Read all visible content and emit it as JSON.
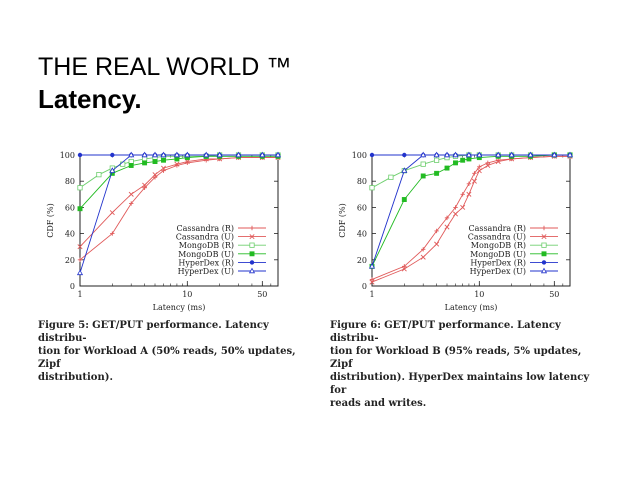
{
  "slide": {
    "title": "THE REAL WORLD ™",
    "subtitle": "Latency."
  },
  "chart_data": [
    {
      "type": "line",
      "title": "",
      "xlabel": "Latency (ms)",
      "ylabel": "CDF (%)",
      "xscale": "log",
      "xlim": [
        1,
        70
      ],
      "ylim": [
        0,
        100
      ],
      "xticks": [
        1,
        10,
        50
      ],
      "xtick_labels": [
        "1",
        "10",
        "50"
      ],
      "yticks": [
        0,
        20,
        40,
        60,
        80,
        100
      ],
      "ytick_labels": [
        "0",
        "20",
        "40",
        "60",
        "80",
        "100"
      ],
      "legend_position": "bottom-right",
      "series": [
        {
          "name": "Cassandra (R)",
          "color": "#e05a5a",
          "marker": "plus",
          "x": [
            1,
            2,
            3,
            4,
            5,
            6,
            8,
            10,
            15,
            20,
            30,
            50,
            70
          ],
          "y": [
            20,
            40,
            63,
            75,
            83,
            88,
            92,
            94,
            96,
            97,
            98,
            98,
            98
          ]
        },
        {
          "name": "Cassandra (U)",
          "color": "#e05a5a",
          "marker": "x",
          "x": [
            1,
            2,
            3,
            4,
            5,
            6,
            8,
            10,
            15,
            20,
            30,
            50,
            70
          ],
          "y": [
            30,
            56,
            70,
            77,
            85,
            90,
            93,
            95,
            97,
            97,
            98,
            98,
            98
          ]
        },
        {
          "name": "MongoDB (R)",
          "color": "#6fcf6f",
          "marker": "square-open",
          "x": [
            1,
            1.5,
            2,
            2.5,
            3,
            4,
            5,
            6,
            8,
            10,
            15,
            20,
            30,
            50,
            70
          ],
          "y": [
            75,
            85,
            90,
            93,
            95,
            97,
            98,
            99,
            99,
            99,
            99,
            100,
            100,
            100,
            100
          ]
        },
        {
          "name": "MongoDB (U)",
          "color": "#22bb22",
          "marker": "square",
          "x": [
            1,
            2,
            3,
            4,
            5,
            6,
            8,
            10,
            15,
            20,
            30,
            50,
            70
          ],
          "y": [
            59,
            86,
            92,
            94,
            95,
            96,
            97,
            98,
            99,
            99,
            99,
            99,
            99
          ]
        },
        {
          "name": "HyperDex (R)",
          "color": "#2233cc",
          "marker": "circle",
          "x": [
            1,
            2,
            3,
            4,
            5,
            6,
            8,
            10,
            15,
            20,
            30,
            50,
            70
          ],
          "y": [
            100,
            100,
            100,
            100,
            100,
            100,
            100,
            100,
            100,
            100,
            100,
            100,
            100
          ]
        },
        {
          "name": "HyperDex (U)",
          "color": "#2233cc",
          "marker": "triangle",
          "x": [
            1,
            2,
            3,
            4,
            5,
            6,
            8,
            10,
            15,
            20,
            30,
            50,
            70
          ],
          "y": [
            10,
            88,
            100,
            100,
            100,
            100,
            100,
            100,
            100,
            100,
            100,
            100,
            100
          ]
        }
      ],
      "caption": {
        "figure_label": "Figure 5:",
        "lines": [
          "GET/PUT performance. Latency distribu-",
          "tion for Workload A (50% reads, 50% updates, Zipf",
          "distribution)."
        ]
      }
    },
    {
      "type": "line",
      "title": "",
      "xlabel": "Latency (ms)",
      "ylabel": "CDF (%)",
      "xscale": "log",
      "xlim": [
        1,
        70
      ],
      "ylim": [
        0,
        100
      ],
      "xticks": [
        1,
        10,
        50
      ],
      "xtick_labels": [
        "1",
        "10",
        "50"
      ],
      "yticks": [
        0,
        20,
        40,
        60,
        80,
        100
      ],
      "ytick_labels": [
        "0",
        "20",
        "40",
        "60",
        "80",
        "100"
      ],
      "legend_position": "bottom-right",
      "series": [
        {
          "name": "Cassandra (R)",
          "color": "#e05a5a",
          "marker": "plus",
          "x": [
            1,
            2,
            3,
            4,
            5,
            6,
            7,
            8,
            9,
            10,
            12,
            15,
            20,
            30,
            50,
            70
          ],
          "y": [
            5,
            15,
            28,
            42,
            52,
            60,
            70,
            78,
            86,
            91,
            94,
            96,
            97,
            98,
            99,
            99
          ]
        },
        {
          "name": "Cassandra (U)",
          "color": "#e05a5a",
          "marker": "x",
          "x": [
            1,
            2,
            3,
            4,
            5,
            6,
            7,
            8,
            9,
            10,
            12,
            15,
            20,
            30,
            50,
            70
          ],
          "y": [
            3,
            13,
            22,
            32,
            45,
            55,
            60,
            70,
            80,
            88,
            92,
            95,
            97,
            98,
            99,
            99
          ]
        },
        {
          "name": "MongoDB (R)",
          "color": "#6fcf6f",
          "marker": "square-open",
          "x": [
            1,
            1.5,
            2,
            3,
            4,
            5,
            6,
            8,
            10,
            15,
            20,
            30,
            50,
            70
          ],
          "y": [
            75,
            83,
            88,
            93,
            96,
            98,
            99,
            100,
            100,
            100,
            100,
            100,
            100,
            100
          ]
        },
        {
          "name": "MongoDB (U)",
          "color": "#22bb22",
          "marker": "square",
          "x": [
            1,
            2,
            3,
            4,
            5,
            6,
            7,
            8,
            10,
            15,
            20,
            30,
            50,
            70
          ],
          "y": [
            15,
            66,
            84,
            86,
            90,
            94,
            96,
            97,
            98,
            99,
            99,
            99,
            100,
            100
          ]
        },
        {
          "name": "HyperDex (R)",
          "color": "#2233cc",
          "marker": "circle",
          "x": [
            1,
            2,
            3,
            4,
            5,
            6,
            8,
            10,
            15,
            20,
            30,
            50,
            70
          ],
          "y": [
            100,
            100,
            100,
            100,
            100,
            100,
            100,
            100,
            100,
            100,
            100,
            100,
            100
          ]
        },
        {
          "name": "HyperDex (U)",
          "color": "#2233cc",
          "marker": "triangle",
          "x": [
            1,
            2,
            3,
            4,
            5,
            6,
            8,
            10,
            15,
            20,
            30,
            50,
            70
          ],
          "y": [
            15,
            88,
            100,
            100,
            100,
            100,
            100,
            100,
            100,
            100,
            100,
            100,
            100
          ]
        }
      ],
      "caption": {
        "figure_label": "Figure 6:",
        "lines": [
          "GET/PUT performance. Latency distribu-",
          "tion for Workload B (95% reads, 5% updates, Zipf",
          "distribution). HyperDex maintains low latency for",
          "reads and writes."
        ]
      }
    }
  ]
}
